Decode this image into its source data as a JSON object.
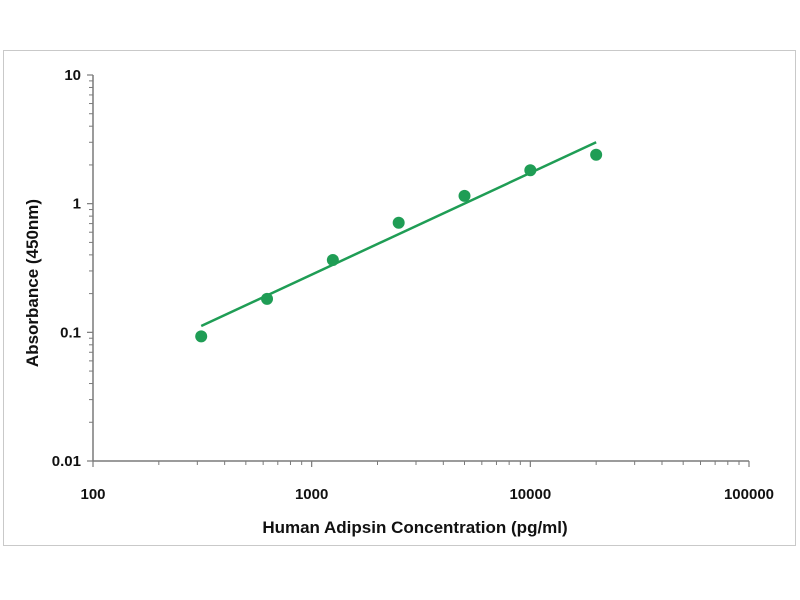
{
  "chart_data": {
    "type": "scatter",
    "xlabel": "Human Adipsin Concentration (pg/ml)",
    "ylabel": "Absorbance (450nm)",
    "x_scale": "log",
    "y_scale": "log",
    "xlim": [
      100,
      100000
    ],
    "ylim": [
      0.01,
      10
    ],
    "x_ticks": [
      "100",
      "1000",
      "10000",
      "100000"
    ],
    "y_ticks": [
      "10",
      "1",
      "0.1",
      "0.01"
    ],
    "grid": false,
    "legend": "none",
    "series": [
      {
        "marker_color": "#1f9d55",
        "points": [
          {
            "x": 312.5,
            "y": 0.093
          },
          {
            "x": 625,
            "y": 0.182
          },
          {
            "x": 1250,
            "y": 0.365
          },
          {
            "x": 2500,
            "y": 0.71
          },
          {
            "x": 5000,
            "y": 1.15
          },
          {
            "x": 10000,
            "y": 1.82
          },
          {
            "x": 20000,
            "y": 2.4
          }
        ]
      }
    ],
    "trendline": {
      "color": "#1f9d55",
      "points": [
        {
          "x": 312.5,
          "y": 0.112
        },
        {
          "x": 20000,
          "y": 3.0
        }
      ]
    }
  }
}
